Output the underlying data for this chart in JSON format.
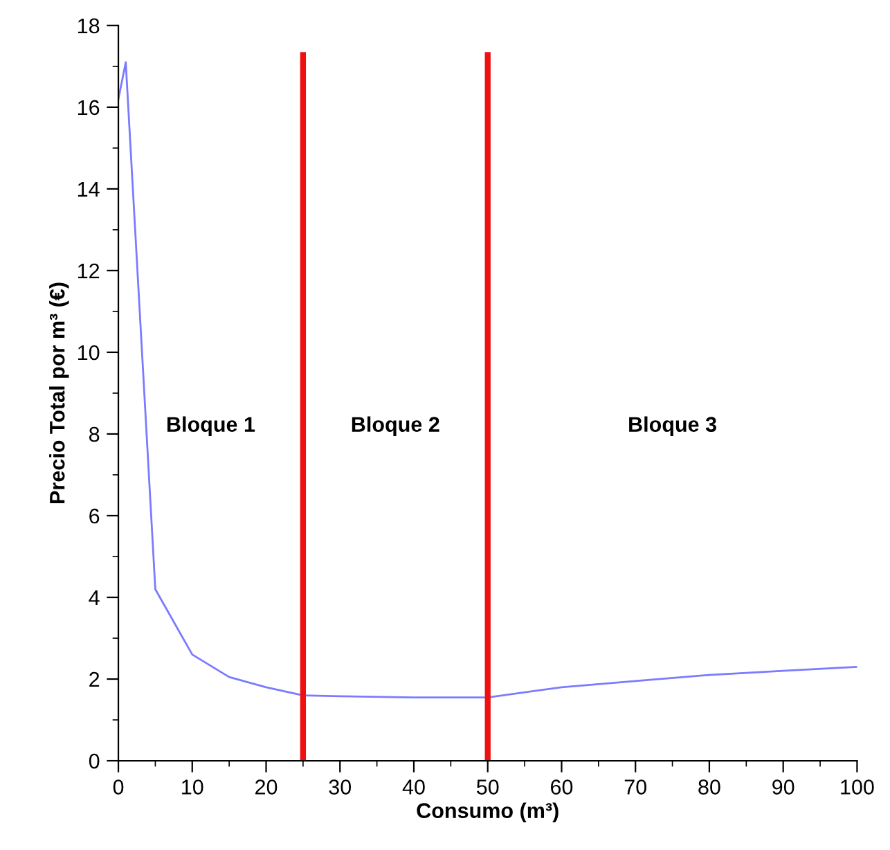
{
  "chart_data": {
    "type": "line",
    "xlabel": "Consumo (m³)",
    "ylabel": "Precio Total por m³ (€)",
    "x": [
      0,
      1,
      5,
      10,
      15,
      20,
      25,
      30,
      40,
      50,
      60,
      70,
      80,
      90,
      100
    ],
    "series": [
      {
        "color": "#7b7bff",
        "values": [
          16.2,
          17.1,
          4.2,
          2.6,
          2.05,
          1.8,
          1.6,
          1.58,
          1.55,
          1.55,
          1.8,
          1.95,
          2.1,
          2.2,
          2.3
        ]
      }
    ],
    "xlim": [
      0,
      100
    ],
    "xticks": [
      0,
      {
        "value": 5,
        "label": null
      },
      10,
      {
        "value": 15,
        "label": null
      },
      20,
      {
        "value": 25,
        "label": null
      },
      30,
      {
        "value": 35,
        "label": null
      },
      40,
      {
        "value": 45,
        "label": null
      },
      50,
      {
        "value": 55,
        "label": null
      },
      60,
      {
        "value": 65,
        "label": null
      },
      70,
      {
        "value": 75,
        "label": null
      },
      80,
      {
        "value": 85,
        "label": null
      },
      90,
      {
        "value": 95,
        "label": null
      },
      100
    ],
    "ylim": [
      0,
      18
    ],
    "yticks": [
      0,
      {
        "value": 1,
        "label": null
      },
      2,
      {
        "value": 3,
        "label": null
      },
      4,
      {
        "value": 5,
        "label": null
      },
      6,
      {
        "value": 7,
        "label": null
      },
      8,
      {
        "value": 9,
        "label": null
      },
      10,
      {
        "value": 11,
        "label": null
      },
      12,
      {
        "value": 13,
        "label": null
      },
      14,
      {
        "value": 15,
        "label": null
      },
      16,
      {
        "value": 17,
        "label": null
      },
      18
    ],
    "ref_lines": [
      {
        "axis": "x",
        "value": 25,
        "color": "#ee1111"
      },
      {
        "axis": "x",
        "value": 50,
        "color": "#ee1111"
      }
    ],
    "annotations": [
      "Bloque 1",
      "Bloque 2",
      "Bloque 3"
    ],
    "grid": false,
    "legend": false,
    "marker": "none",
    "line_style": "solid"
  }
}
